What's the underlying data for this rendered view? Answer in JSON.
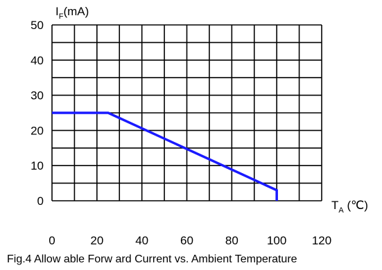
{
  "colors": {
    "line": "#1a1aff",
    "grid": "#000000",
    "background": "#ffffff"
  },
  "chart_data": {
    "type": "line",
    "title": "Fig.4 Allow able Forw ard Current vs. Ambient Temperature",
    "ylabel": {
      "main": "I",
      "sub": "F",
      "rest": "(mA)"
    },
    "xlabel": {
      "main": "T",
      "sub": "A",
      "rest": " (℃)"
    },
    "xlim": [
      0,
      120
    ],
    "ylim": [
      0,
      50
    ],
    "x_ticks": [
      "0",
      "20",
      "40",
      "60",
      "80",
      "100",
      "120"
    ],
    "y_ticks": [
      "0",
      "10",
      "20",
      "30",
      "40",
      "50"
    ],
    "x_grid_step": 10,
    "y_grid_step": 5,
    "grid": true,
    "series": [
      {
        "x": [
          0,
          25,
          100,
          100
        ],
        "y": [
          25,
          25,
          3,
          0
        ]
      }
    ]
  }
}
